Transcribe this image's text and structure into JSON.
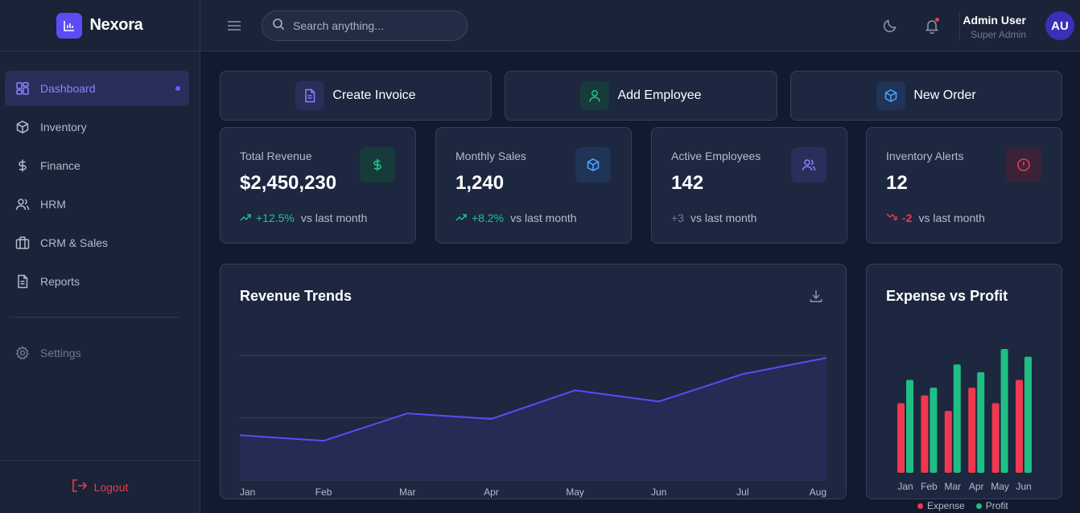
{
  "app": {
    "name": "Nexora"
  },
  "sidebar": {
    "items": [
      {
        "label": "Dashboard",
        "icon": "dashboard-icon",
        "active": true
      },
      {
        "label": "Inventory",
        "icon": "box-icon"
      },
      {
        "label": "Finance",
        "icon": "dollar-icon"
      },
      {
        "label": "HRM",
        "icon": "users-icon"
      },
      {
        "label": "CRM & Sales",
        "icon": "briefcase-icon"
      },
      {
        "label": "Reports",
        "icon": "file-icon"
      }
    ],
    "settings_label": "Settings",
    "logout_label": "Logout"
  },
  "header": {
    "search_placeholder": "Search anything...",
    "user_name": "Admin User",
    "user_role": "Super Admin",
    "avatar_initials": "AU"
  },
  "quick_actions": [
    {
      "label": "Create Invoice",
      "icon": "file-icon",
      "color": "#8a82ff"
    },
    {
      "label": "Add Employee",
      "icon": "user-icon",
      "color": "#22c38e"
    },
    {
      "label": "New Order",
      "icon": "box-icon",
      "color": "#4ea3ff"
    }
  ],
  "stats": [
    {
      "title": "Total Revenue",
      "value": "$2,450,230",
      "change": "+12.5%",
      "trend": "up",
      "suffix": "vs last month",
      "icon": "dollar-icon",
      "color": "#22c38e"
    },
    {
      "title": "Monthly Sales",
      "value": "1,240",
      "change": "+8.2%",
      "trend": "up",
      "suffix": "vs last month",
      "icon": "box-icon",
      "color": "#4ea3ff"
    },
    {
      "title": "Active Employees",
      "value": "142",
      "change": "+3",
      "trend": "neutral",
      "suffix": "vs last month",
      "icon": "users-icon",
      "color": "#8a82ff"
    },
    {
      "title": "Inventory Alerts",
      "value": "12",
      "change": "-2",
      "trend": "down",
      "suffix": "vs last month",
      "icon": "alert-icon",
      "color": "#f0384e"
    }
  ],
  "revenue_card": {
    "title": "Revenue Trends"
  },
  "expense_card": {
    "title": "Expense vs Profit"
  },
  "chart_data": [
    {
      "type": "area",
      "title": "Revenue Trends",
      "categories": [
        "Jan",
        "Feb",
        "Mar",
        "Apr",
        "May",
        "Jun",
        "Jul",
        "Aug"
      ],
      "series": [
        {
          "values": [
            72,
            63,
            107,
            98,
            144,
            126,
            170,
            196
          ]
        }
      ],
      "ylim": [
        0,
        200
      ],
      "grid": true,
      "color": "#5b4cf5"
    },
    {
      "type": "bar",
      "title": "Expense vs Profit",
      "categories": [
        "Jan",
        "Feb",
        "Mar",
        "Apr",
        "May",
        "Jun"
      ],
      "series": [
        {
          "name": "Expense",
          "values": [
            45,
            50,
            40,
            55,
            45,
            60
          ],
          "color": "#f0384e"
        },
        {
          "name": "Profit",
          "values": [
            60,
            55,
            70,
            65,
            80,
            75
          ],
          "color": "#1fbf84"
        }
      ],
      "ylim": [
        0,
        80
      ],
      "legend": "bottom"
    }
  ]
}
